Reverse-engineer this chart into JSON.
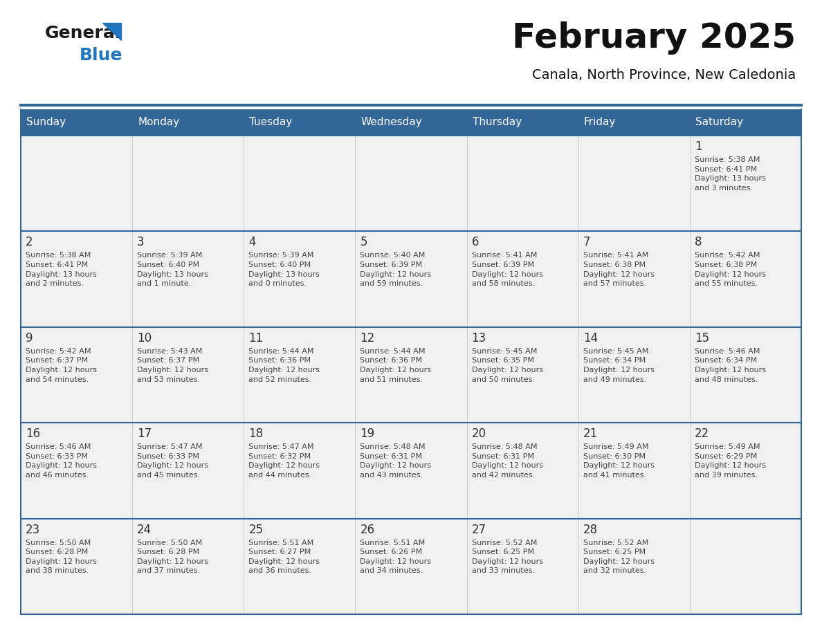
{
  "title": "February 2025",
  "subtitle": "Canala, North Province, New Caledonia",
  "days_of_week": [
    "Sunday",
    "Monday",
    "Tuesday",
    "Wednesday",
    "Thursday",
    "Friday",
    "Saturday"
  ],
  "header_bg": "#336699",
  "header_text": "#FFFFFF",
  "cell_bg": "#F0F0F0",
  "border_color": "#336699",
  "cell_border_color": "#336699",
  "title_color": "#111111",
  "subtitle_color": "#111111",
  "day_number_color": "#333333",
  "cell_text_color": "#444444",
  "logo_general_color": "#1a1a1a",
  "logo_blue_color": "#2077C0",
  "weeks": [
    [
      {
        "day": "",
        "info": ""
      },
      {
        "day": "",
        "info": ""
      },
      {
        "day": "",
        "info": ""
      },
      {
        "day": "",
        "info": ""
      },
      {
        "day": "",
        "info": ""
      },
      {
        "day": "",
        "info": ""
      },
      {
        "day": "1",
        "info": "Sunrise: 5:38 AM\nSunset: 6:41 PM\nDaylight: 13 hours\nand 3 minutes."
      }
    ],
    [
      {
        "day": "2",
        "info": "Sunrise: 5:38 AM\nSunset: 6:41 PM\nDaylight: 13 hours\nand 2 minutes."
      },
      {
        "day": "3",
        "info": "Sunrise: 5:39 AM\nSunset: 6:40 PM\nDaylight: 13 hours\nand 1 minute."
      },
      {
        "day": "4",
        "info": "Sunrise: 5:39 AM\nSunset: 6:40 PM\nDaylight: 13 hours\nand 0 minutes."
      },
      {
        "day": "5",
        "info": "Sunrise: 5:40 AM\nSunset: 6:39 PM\nDaylight: 12 hours\nand 59 minutes."
      },
      {
        "day": "6",
        "info": "Sunrise: 5:41 AM\nSunset: 6:39 PM\nDaylight: 12 hours\nand 58 minutes."
      },
      {
        "day": "7",
        "info": "Sunrise: 5:41 AM\nSunset: 6:38 PM\nDaylight: 12 hours\nand 57 minutes."
      },
      {
        "day": "8",
        "info": "Sunrise: 5:42 AM\nSunset: 6:38 PM\nDaylight: 12 hours\nand 55 minutes."
      }
    ],
    [
      {
        "day": "9",
        "info": "Sunrise: 5:42 AM\nSunset: 6:37 PM\nDaylight: 12 hours\nand 54 minutes."
      },
      {
        "day": "10",
        "info": "Sunrise: 5:43 AM\nSunset: 6:37 PM\nDaylight: 12 hours\nand 53 minutes."
      },
      {
        "day": "11",
        "info": "Sunrise: 5:44 AM\nSunset: 6:36 PM\nDaylight: 12 hours\nand 52 minutes."
      },
      {
        "day": "12",
        "info": "Sunrise: 5:44 AM\nSunset: 6:36 PM\nDaylight: 12 hours\nand 51 minutes."
      },
      {
        "day": "13",
        "info": "Sunrise: 5:45 AM\nSunset: 6:35 PM\nDaylight: 12 hours\nand 50 minutes."
      },
      {
        "day": "14",
        "info": "Sunrise: 5:45 AM\nSunset: 6:34 PM\nDaylight: 12 hours\nand 49 minutes."
      },
      {
        "day": "15",
        "info": "Sunrise: 5:46 AM\nSunset: 6:34 PM\nDaylight: 12 hours\nand 48 minutes."
      }
    ],
    [
      {
        "day": "16",
        "info": "Sunrise: 5:46 AM\nSunset: 6:33 PM\nDaylight: 12 hours\nand 46 minutes."
      },
      {
        "day": "17",
        "info": "Sunrise: 5:47 AM\nSunset: 6:33 PM\nDaylight: 12 hours\nand 45 minutes."
      },
      {
        "day": "18",
        "info": "Sunrise: 5:47 AM\nSunset: 6:32 PM\nDaylight: 12 hours\nand 44 minutes."
      },
      {
        "day": "19",
        "info": "Sunrise: 5:48 AM\nSunset: 6:31 PM\nDaylight: 12 hours\nand 43 minutes."
      },
      {
        "day": "20",
        "info": "Sunrise: 5:48 AM\nSunset: 6:31 PM\nDaylight: 12 hours\nand 42 minutes."
      },
      {
        "day": "21",
        "info": "Sunrise: 5:49 AM\nSunset: 6:30 PM\nDaylight: 12 hours\nand 41 minutes."
      },
      {
        "day": "22",
        "info": "Sunrise: 5:49 AM\nSunset: 6:29 PM\nDaylight: 12 hours\nand 39 minutes."
      }
    ],
    [
      {
        "day": "23",
        "info": "Sunrise: 5:50 AM\nSunset: 6:28 PM\nDaylight: 12 hours\nand 38 minutes."
      },
      {
        "day": "24",
        "info": "Sunrise: 5:50 AM\nSunset: 6:28 PM\nDaylight: 12 hours\nand 37 minutes."
      },
      {
        "day": "25",
        "info": "Sunrise: 5:51 AM\nSunset: 6:27 PM\nDaylight: 12 hours\nand 36 minutes."
      },
      {
        "day": "26",
        "info": "Sunrise: 5:51 AM\nSunset: 6:26 PM\nDaylight: 12 hours\nand 34 minutes."
      },
      {
        "day": "27",
        "info": "Sunrise: 5:52 AM\nSunset: 6:25 PM\nDaylight: 12 hours\nand 33 minutes."
      },
      {
        "day": "28",
        "info": "Sunrise: 5:52 AM\nSunset: 6:25 PM\nDaylight: 12 hours\nand 32 minutes."
      },
      {
        "day": "",
        "info": ""
      }
    ]
  ]
}
